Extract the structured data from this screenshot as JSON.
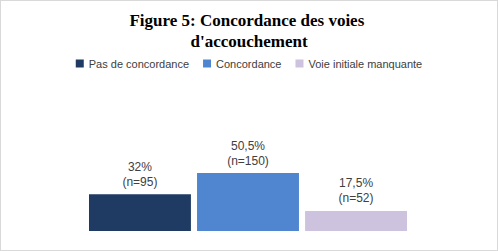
{
  "chart_data": {
    "type": "bar",
    "title": "Figure 5: Concordance des voies d'accouchement",
    "series": [
      {
        "name": "Pas de concordance",
        "color": "#1f3b63",
        "values": [
          32
        ],
        "value_labels": [
          "32%\n(n=95)"
        ]
      },
      {
        "name": "Concordance",
        "color": "#4f86cf",
        "values": [
          50.5
        ],
        "value_labels": [
          "50,5%\n(n=150)"
        ]
      },
      {
        "name": "Voie initiale manquante",
        "color": "#cdc3df",
        "values": [
          17.5
        ],
        "value_labels": [
          "17,5%\n(n=52)"
        ]
      }
    ],
    "legend": "top",
    "data_labels": true,
    "tick_labels": false,
    "grid": false
  }
}
